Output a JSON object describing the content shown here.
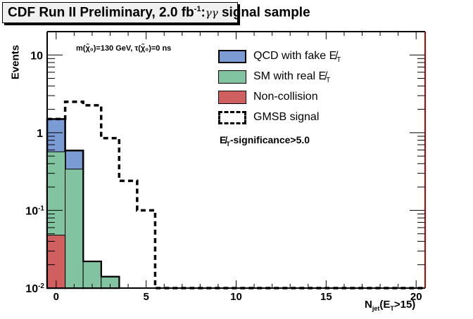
{
  "title": {
    "main": "CDF Run II Preliminary, 2.0 fb",
    "sup": "-1",
    "colon": ":",
    "greek": "γγ",
    "rest": " signal sample"
  },
  "annotation": "m(χ̃₀)=130 GeV, τ(χ̃₀)=0 ns",
  "cut_label": {
    "symbol": "E̸",
    "sub": "T",
    "text": "-significance>5.0"
  },
  "legend": [
    {
      "label": "QCD with fake E̸",
      "sub": "T",
      "color": "#7b9bd4",
      "style": "fill-bold"
    },
    {
      "label": "SM with real E̸",
      "sub": "T",
      "color": "#82c4a2",
      "style": "fill"
    },
    {
      "label": "Non-collision",
      "sub": "",
      "color": "#d06060",
      "style": "fill"
    },
    {
      "label": "GMSB signal",
      "sub": "",
      "color": "#000000",
      "style": "dashed"
    }
  ],
  "chart_data": {
    "type": "bar",
    "subtype": "stacked-histogram-log",
    "title": "CDF Run II Preliminary, 2.0 fb^-1: γγ signal sample",
    "xlabel": "N_jet(E_T>15)",
    "ylabel": "Events",
    "xlim": [
      -0.5,
      20.5
    ],
    "ylim": [
      0.01,
      20
    ],
    "yscale": "log",
    "x_ticks": [
      0,
      5,
      10,
      15,
      20
    ],
    "x_tick_labels": [
      "0",
      "5",
      "10",
      "15",
      "20"
    ],
    "y_ticks": [
      0.01,
      0.1,
      1,
      10
    ],
    "y_tick_labels": [
      {
        "base": "10",
        "exp": "-2"
      },
      {
        "base": "10",
        "exp": "-1"
      },
      {
        "base": "1",
        "exp": ""
      },
      {
        "base": "10",
        "exp": ""
      }
    ],
    "bins": [
      0,
      1,
      2,
      3,
      4,
      5,
      6,
      7,
      8,
      9,
      10,
      11,
      12,
      13,
      14,
      15,
      16,
      17,
      18,
      19,
      20
    ],
    "stacked_series": [
      {
        "name": "Non-collision",
        "color": "#d06060",
        "values": [
          0.048,
          0,
          0,
          0,
          0,
          0,
          0,
          0,
          0,
          0,
          0,
          0,
          0,
          0,
          0,
          0,
          0,
          0,
          0,
          0,
          0
        ]
      },
      {
        "name": "SM with real MET",
        "color": "#82c4a2",
        "values": [
          0.52,
          0.34,
          0.022,
          0.014,
          0,
          0,
          0,
          0,
          0,
          0,
          0,
          0,
          0,
          0,
          0,
          0,
          0,
          0,
          0,
          0,
          0
        ]
      },
      {
        "name": "QCD with fake MET",
        "color": "#7b9bd4",
        "values": [
          0.93,
          0.25,
          0,
          0,
          0,
          0,
          0,
          0,
          0,
          0,
          0,
          0,
          0,
          0,
          0,
          0,
          0,
          0,
          0,
          0,
          0
        ]
      }
    ],
    "stack_totals": [
      1.5,
      0.59,
      0.022,
      0.014,
      0,
      0,
      0,
      0,
      0,
      0,
      0,
      0,
      0,
      0,
      0,
      0,
      0,
      0,
      0,
      0,
      0
    ],
    "overlay_series": [
      {
        "name": "GMSB signal",
        "style": "dashed",
        "values": [
          1.5,
          2.5,
          2.25,
          0.85,
          0.24,
          0.1,
          0,
          0,
          0,
          0,
          0,
          0,
          0,
          0,
          0,
          0,
          0,
          0,
          0,
          0,
          0
        ]
      }
    ],
    "legend_position": "top-right",
    "grid": false
  }
}
